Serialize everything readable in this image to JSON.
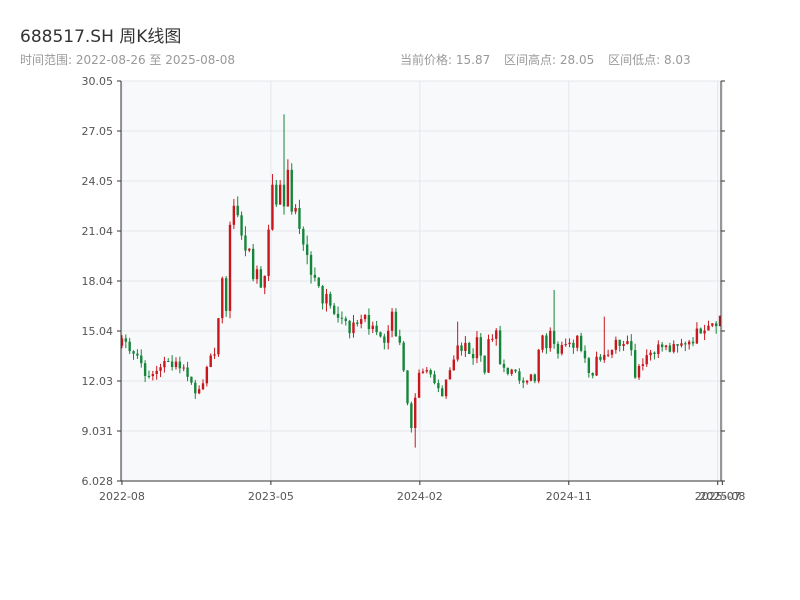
{
  "header": {
    "title": "688517.SH 周K线图",
    "range": "时间范围: 2022-08-26 至 2025-08-08",
    "current_price": "当前价格: 15.87",
    "period_high": "区间高点: 28.05",
    "period_low": "区间低点: 8.03"
  },
  "colors": {
    "up": "#c8161d",
    "down": "#15853a",
    "plot_bg": "#f8f9fb",
    "grid": "#e3e7ec",
    "axis": "#333333"
  },
  "chart_data": {
    "type": "candlestick",
    "title": "688517.SH 周K线图",
    "ylim": [
      6.028,
      30.05
    ],
    "yticks": [
      "6.028",
      "9.031",
      "12.03",
      "15.04",
      "18.04",
      "21.04",
      "24.05",
      "27.05",
      "30.05"
    ],
    "xticks": [
      {
        "label": "2022-08",
        "index": 0
      },
      {
        "label": "2023-05",
        "index": 38.6
      },
      {
        "label": "2024-02",
        "index": 77.2
      },
      {
        "label": "2024-11",
        "index": 115.8
      },
      {
        "label": "2025-07",
        "index": 154.4
      },
      {
        "label": "2025-08",
        "index": 155.6
      }
    ],
    "x_count": 156,
    "keypoints": [
      [
        0,
        14.6
      ],
      [
        4,
        13.6
      ],
      [
        7,
        12.1
      ],
      [
        10,
        13.0
      ],
      [
        14,
        13.2
      ],
      [
        17,
        12.5
      ],
      [
        19,
        11.3
      ],
      [
        22,
        12.6
      ],
      [
        24,
        13.9
      ],
      [
        26,
        17.8
      ],
      [
        27,
        16.5
      ],
      [
        28,
        21.5
      ],
      [
        29,
        22.5
      ],
      [
        30,
        21.8
      ],
      [
        31,
        21.0
      ],
      [
        32,
        20.2
      ],
      [
        33,
        19.5
      ],
      [
        34,
        18.2
      ],
      [
        35,
        19.0
      ],
      [
        36,
        17.6
      ],
      [
        37,
        18.5
      ],
      [
        38,
        21.5
      ],
      [
        39,
        23.5
      ],
      [
        40,
        22.8
      ],
      [
        41,
        24.0
      ],
      [
        42,
        23.0
      ],
      [
        43,
        24.2
      ],
      [
        44,
        22.5
      ],
      [
        45,
        22.0
      ],
      [
        46,
        21.2
      ],
      [
        47,
        20.5
      ],
      [
        48,
        19.5
      ],
      [
        49,
        18.5
      ],
      [
        50,
        18.0
      ],
      [
        51,
        17.6
      ],
      [
        52,
        17.0
      ],
      [
        53,
        17.5
      ],
      [
        54,
        16.6
      ],
      [
        56,
        16.2
      ],
      [
        58,
        15.5
      ],
      [
        59,
        14.8
      ],
      [
        61,
        15.6
      ],
      [
        63,
        16.0
      ],
      [
        64,
        15.2
      ],
      [
        66,
        15.0
      ],
      [
        68,
        14.5
      ],
      [
        70,
        16.0
      ],
      [
        71,
        15.0
      ],
      [
        72,
        14.5
      ],
      [
        73,
        12.5
      ],
      [
        74,
        10.5
      ],
      [
        75,
        9.0
      ],
      [
        76,
        10.8
      ],
      [
        77,
        12.3
      ],
      [
        79,
        12.6
      ],
      [
        81,
        12.2
      ],
      [
        83,
        11.2
      ],
      [
        84,
        12.3
      ],
      [
        86,
        13.2
      ],
      [
        87,
        14.0
      ],
      [
        90,
        14.0
      ],
      [
        91,
        13.5
      ],
      [
        92,
        14.6
      ],
      [
        93,
        13.6
      ],
      [
        94,
        12.8
      ],
      [
        95,
        14.2
      ],
      [
        96,
        14.6
      ],
      [
        97,
        14.8
      ],
      [
        98,
        13.0
      ],
      [
        100,
        12.7
      ],
      [
        103,
        12.2
      ],
      [
        106,
        12.3
      ],
      [
        107,
        11.9
      ],
      [
        108,
        13.8
      ],
      [
        109,
        14.5
      ],
      [
        110,
        14.2
      ],
      [
        111,
        14.8
      ],
      [
        112,
        14.5
      ],
      [
        113,
        14.0
      ],
      [
        114,
        14.5
      ],
      [
        115,
        14.6
      ],
      [
        116,
        14.3
      ],
      [
        117,
        13.8
      ],
      [
        118,
        14.5
      ],
      [
        119,
        14.1
      ],
      [
        120,
        13.4
      ],
      [
        121,
        12.8
      ],
      [
        122,
        12.5
      ],
      [
        123,
        13.5
      ],
      [
        124,
        13.6
      ],
      [
        126,
        13.8
      ],
      [
        128,
        14.3
      ],
      [
        130,
        14.5
      ],
      [
        131,
        14.8
      ],
      [
        132,
        13.8
      ],
      [
        133,
        12.5
      ],
      [
        134,
        13.0
      ],
      [
        136,
        13.6
      ],
      [
        138,
        14.0
      ],
      [
        140,
        14.1
      ],
      [
        142,
        13.9
      ],
      [
        144,
        14.0
      ],
      [
        146,
        14.4
      ],
      [
        148,
        14.6
      ],
      [
        150,
        15.2
      ],
      [
        152,
        15.6
      ],
      [
        154,
        15.7
      ],
      [
        155,
        15.87
      ]
    ],
    "emphasis": [
      {
        "index": 76,
        "low": 8.03
      },
      {
        "index": 42,
        "high": 28.05
      },
      {
        "index": 112,
        "high": 17.5
      },
      {
        "index": 87,
        "high": 15.6
      },
      {
        "index": 125,
        "high": 15.9
      }
    ]
  }
}
